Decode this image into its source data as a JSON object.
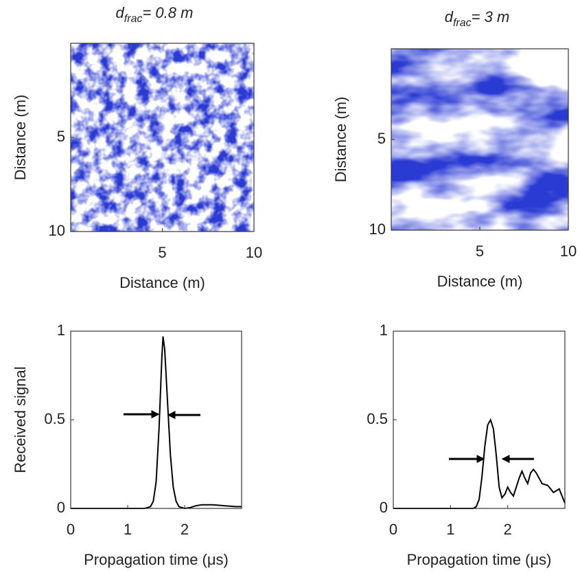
{
  "chart_data": [
    {
      "type": "heatmap",
      "title": [
        "d",
        "frac",
        "= 0.8 m"
      ],
      "xlabel": "Distance (m)",
      "ylabel": "Distance (m)",
      "xlim": [
        0,
        10
      ],
      "xticks": [
        5,
        10
      ],
      "ylim": [
        0,
        10
      ],
      "yticks": [
        5,
        10
      ],
      "y_reversed": true,
      "color": "#2b3bd4"
    },
    {
      "type": "heatmap",
      "title": [
        "d",
        "frac",
        "= 3 m"
      ],
      "xlabel": "Distance (m)",
      "ylabel": "Distance (m)",
      "xlim": [
        0,
        10
      ],
      "xticks": [
        5,
        10
      ],
      "ylim": [
        0,
        10
      ],
      "yticks": [
        5,
        10
      ],
      "y_reversed": true,
      "color": "#2b3bd4"
    },
    {
      "type": "line",
      "xlabel": "Propagation time (μs)",
      "ylabel": "Received signal",
      "xlim": [
        0,
        3
      ],
      "xticks": [
        0,
        1,
        2
      ],
      "ylim": [
        0,
        1
      ],
      "yticks": [
        0,
        0.5,
        1
      ],
      "color": "#000000",
      "x": [
        0,
        0.5,
        1,
        1.3,
        1.4,
        1.45,
        1.5,
        1.55,
        1.6,
        1.62,
        1.65,
        1.7,
        1.75,
        1.8,
        1.85,
        1.9,
        2.0,
        2.1,
        2.2,
        2.3,
        2.5,
        2.7,
        2.9,
        3.0
      ],
      "values": [
        0,
        0,
        0,
        0,
        0.01,
        0.04,
        0.15,
        0.45,
        0.85,
        0.97,
        0.9,
        0.6,
        0.3,
        0.12,
        0.04,
        0.01,
        0,
        0.005,
        0.015,
        0.02,
        0.02,
        0.015,
        0.01,
        0.01
      ]
    },
    {
      "type": "line",
      "xlabel": "Propagation time (μs)",
      "xlim": [
        0,
        3
      ],
      "xticks": [
        0,
        1,
        2
      ],
      "ylim": [
        0,
        1
      ],
      "yticks": [
        0,
        0.5,
        1
      ],
      "color": "#000000",
      "x": [
        0,
        0.5,
        1,
        1.4,
        1.45,
        1.5,
        1.55,
        1.6,
        1.65,
        1.7,
        1.75,
        1.8,
        1.85,
        1.9,
        1.95,
        2.0,
        2.05,
        2.1,
        2.2,
        2.25,
        2.3,
        2.35,
        2.4,
        2.45,
        2.5,
        2.6,
        2.7,
        2.8,
        2.9,
        2.95,
        3.0
      ],
      "values": [
        0,
        0,
        0,
        0,
        0.01,
        0.05,
        0.18,
        0.35,
        0.47,
        0.5,
        0.45,
        0.3,
        0.12,
        0.06,
        0.08,
        0.12,
        0.09,
        0.07,
        0.17,
        0.21,
        0.17,
        0.14,
        0.2,
        0.22,
        0.2,
        0.14,
        0.13,
        0.09,
        0.11,
        0.07,
        0.03
      ]
    }
  ]
}
